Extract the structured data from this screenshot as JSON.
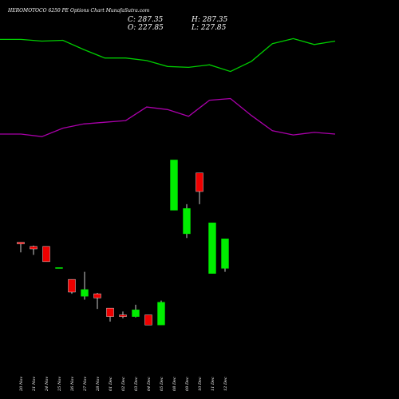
{
  "title": "HEROMOTOCO 6250 PE Options Chart MunafaSutra.com",
  "ohlc": {
    "c_label": "C:",
    "c_value": "287.35",
    "o_label": "O:",
    "o_value": "227.85",
    "h_label": "H:",
    "h_value": "287.35",
    "l_label": "L:",
    "l_value": "227.85"
  },
  "colors": {
    "background": "#000000",
    "up": "#00ee00",
    "down": "#ee0000",
    "neutral": "#00ee00",
    "green_line": "#00cc00",
    "magenta_line": "#aa00aa",
    "wick": "#ffffff"
  },
  "chart_data": {
    "type": "candlestick",
    "ylim": [
      80,
      420
    ],
    "categories": [
      "20 Nov",
      "21 Nov",
      "24 Nov",
      "25 Nov",
      "26 Nov",
      "27 Nov",
      "28 Nov",
      "01 Dec",
      "02 Dec",
      "03 Dec",
      "04 Dec",
      "05 Dec",
      "08 Dec",
      "09 Dec",
      "10 Dec",
      "11 Dec",
      "12 Dec"
    ],
    "candles": [
      {
        "open": 190,
        "close": 188,
        "high": 190,
        "low": 178
      },
      {
        "open": 185,
        "close": 182,
        "high": 186,
        "low": 175
      },
      {
        "open": 185,
        "close": 167,
        "high": 185,
        "low": 167
      },
      {
        "open": 160,
        "close": 160,
        "high": 160,
        "low": 160
      },
      {
        "open": 146,
        "close": 131,
        "high": 146,
        "low": 129
      },
      {
        "open": 126,
        "close": 134,
        "high": 155,
        "low": 122
      },
      {
        "open": 129,
        "close": 124,
        "high": 130,
        "low": 111
      },
      {
        "open": 112,
        "close": 102,
        "high": 112,
        "low": 96
      },
      {
        "open": 104,
        "close": 102,
        "high": 108,
        "low": 100
      },
      {
        "open": 102,
        "close": 110,
        "high": 116,
        "low": 101
      },
      {
        "open": 104,
        "close": 92,
        "high": 104,
        "low": 92
      },
      {
        "open": 92,
        "close": 119,
        "high": 121,
        "low": 92
      },
      {
        "open": 227.85,
        "close": 287.35,
        "high": 287.35,
        "low": 227.85
      },
      {
        "open": 200,
        "close": 230,
        "high": 235,
        "low": 195
      },
      {
        "open": 272,
        "close": 250,
        "high": 272,
        "low": 235
      },
      {
        "open": 153,
        "close": 213,
        "high": 213,
        "low": 153
      },
      {
        "open": 159,
        "close": 194,
        "high": 194,
        "low": 155
      }
    ],
    "green_line": [
      430,
      430,
      428,
      429,
      418,
      408,
      408,
      405,
      398,
      397,
      400,
      392,
      404,
      425,
      431,
      424,
      428
    ],
    "magenta_line": [
      318,
      318,
      315,
      325,
      330,
      332,
      334,
      350,
      347,
      339,
      358,
      360,
      340,
      322,
      317,
      320,
      318
    ]
  }
}
